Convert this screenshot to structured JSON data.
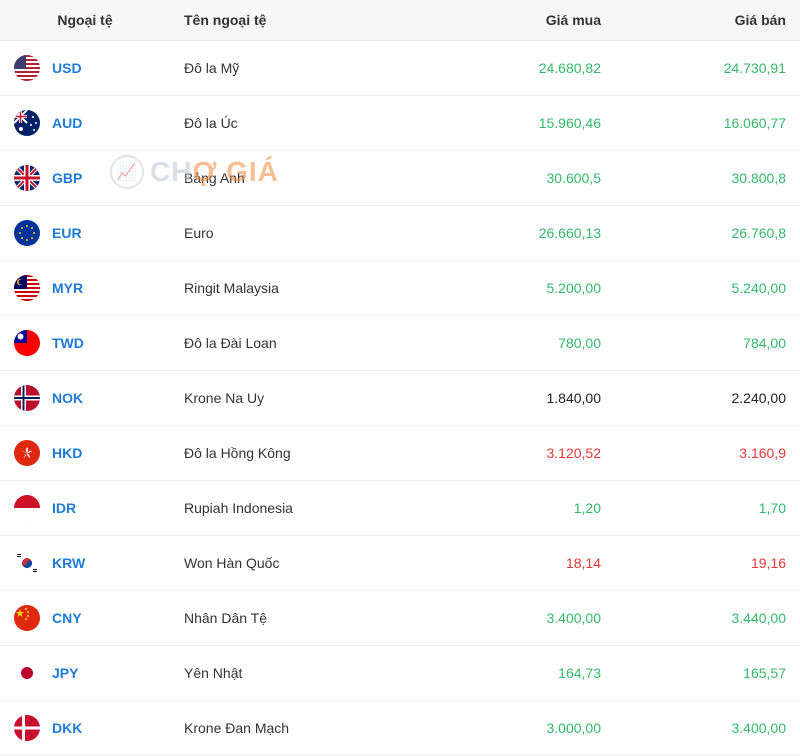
{
  "headers": {
    "code": "Ngoại tệ",
    "name": "Tên ngoại tệ",
    "buy": "Giá mua",
    "sell": "Giá bán"
  },
  "colors": {
    "link": "#1e7bd6",
    "up": "#34b96a",
    "down": "#e43838",
    "neutral": "#222222",
    "header_bg": "#f7f7f7",
    "border": "#eeeeee"
  },
  "watermark": {
    "text1": "CH",
    "text2": "Ợ GIÁ"
  },
  "rows": [
    {
      "code": "USD",
      "name": "Đô la Mỹ",
      "buy": "24.680,82",
      "sell": "24.730,91",
      "trend": "up",
      "flag": "us"
    },
    {
      "code": "AUD",
      "name": "Đô la Úc",
      "buy": "15.960,46",
      "sell": "16.060,77",
      "trend": "up",
      "flag": "au"
    },
    {
      "code": "GBP",
      "name": "Bảng Anh",
      "buy": "30.600,5",
      "sell": "30.800,8",
      "trend": "up",
      "flag": "gb"
    },
    {
      "code": "EUR",
      "name": "Euro",
      "buy": "26.660,13",
      "sell": "26.760,8",
      "trend": "up",
      "flag": "eu"
    },
    {
      "code": "MYR",
      "name": "Ringit Malaysia",
      "buy": "5.200,00",
      "sell": "5.240,00",
      "trend": "up",
      "flag": "my"
    },
    {
      "code": "TWD",
      "name": "Đô la Đài Loan",
      "buy": "780,00",
      "sell": "784,00",
      "trend": "up",
      "flag": "tw"
    },
    {
      "code": "NOK",
      "name": "Krone Na Uy",
      "buy": "1.840,00",
      "sell": "2.240,00",
      "trend": "neutral",
      "flag": "no"
    },
    {
      "code": "HKD",
      "name": "Đô la Hồng Kông",
      "buy": "3.120,52",
      "sell": "3.160,9",
      "trend": "down",
      "flag": "hk"
    },
    {
      "code": "IDR",
      "name": "Rupiah Indonesia",
      "buy": "1,20",
      "sell": "1,70",
      "trend": "up",
      "flag": "id"
    },
    {
      "code": "KRW",
      "name": "Won Hàn Quốc",
      "buy": "18,14",
      "sell": "19,16",
      "trend": "down",
      "flag": "kr"
    },
    {
      "code": "CNY",
      "name": "Nhân Dân Tệ",
      "buy": "3.400,00",
      "sell": "3.440,00",
      "trend": "up",
      "flag": "cn"
    },
    {
      "code": "JPY",
      "name": "Yên Nhật",
      "buy": "164,73",
      "sell": "165,57",
      "trend": "up",
      "flag": "jp"
    },
    {
      "code": "DKK",
      "name": "Krone Đan Mạch",
      "buy": "3.000,00",
      "sell": "3.400,00",
      "trend": "up",
      "flag": "dk"
    }
  ],
  "flags": {
    "us": "<svg viewBox='0 0 26 26'><rect width='26' height='26' fill='#b22234'/><rect y='2' width='26' height='2' fill='#fff'/><rect y='6' width='26' height='2' fill='#fff'/><rect y='10' width='26' height='2' fill='#fff'/><rect y='14' width='26' height='2' fill='#fff'/><rect y='18' width='26' height='2' fill='#fff'/><rect y='22' width='26' height='2' fill='#fff'/><rect width='12' height='14' fill='#3c3b6e'/></svg>",
    "au": "<svg viewBox='0 0 26 26'><rect width='26' height='26' fill='#012169'/><rect width='13' height='13' fill='#012169'/><path d='M0 0L13 13M13 0L0 13' stroke='#fff' stroke-width='2'/><path d='M6.5 0V13M0 6.5H13' stroke='#fff' stroke-width='3'/><path d='M6.5 0V13M0 6.5H13' stroke='#c8102e' stroke-width='1.5'/><circle cx='19' cy='7' r='1' fill='#fff'/><circle cx='17' cy='15' r='1' fill='#fff'/><circle cx='22' cy='13' r='1' fill='#fff'/><circle cx='20' cy='20' r='1' fill='#fff'/><circle cx='7' cy='19' r='2' fill='#fff'/></svg>",
    "gb": "<svg viewBox='0 0 26 26'><rect width='26' height='26' fill='#012169'/><path d='M0 0L26 26M26 0L0 26' stroke='#fff' stroke-width='4'/><path d='M0 0L26 26M26 0L0 26' stroke='#c8102e' stroke-width='2'/><path d='M13 0V26M0 13H26' stroke='#fff' stroke-width='6'/><path d='M13 0V26M0 13H26' stroke='#c8102e' stroke-width='3'/></svg>",
    "eu": "<svg viewBox='0 0 26 26'><rect width='26' height='26' fill='#003399'/><circle cx='13' cy='6' r='1' fill='#ffcc00'/><circle cx='13' cy='20' r='1' fill='#ffcc00'/><circle cx='6' cy='13' r='1' fill='#ffcc00'/><circle cx='20' cy='13' r='1' fill='#ffcc00'/><circle cx='8' cy='8' r='1' fill='#ffcc00'/><circle cx='18' cy='8' r='1' fill='#ffcc00'/><circle cx='8' cy='18' r='1' fill='#ffcc00'/><circle cx='18' cy='18' r='1' fill='#ffcc00'/></svg>",
    "my": "<svg viewBox='0 0 26 26'><rect width='26' height='26' fill='#cc0001'/><rect y='2' width='26' height='2' fill='#fff'/><rect y='6' width='26' height='2' fill='#fff'/><rect y='10' width='26' height='2' fill='#fff'/><rect y='14' width='26' height='2' fill='#fff'/><rect y='18' width='26' height='2' fill='#fff'/><rect y='22' width='26' height='2' fill='#fff'/><rect width='13' height='14' fill='#010066'/><circle cx='6' cy='7' r='3' fill='#ffcc00'/><circle cx='7' cy='7' r='2.5' fill='#010066'/></svg>",
    "tw": "<svg viewBox='0 0 26 26'><rect width='26' height='26' fill='#fe0000'/><rect width='13' height='13' fill='#000095'/><circle cx='6.5' cy='6.5' r='3' fill='#fff'/></svg>",
    "no": "<svg viewBox='0 0 26 26'><rect width='26' height='26' fill='#ba0c2f'/><rect x='7' width='5' height='26' fill='#fff'/><rect y='10.5' width='26' height='5' fill='#fff'/><rect x='8.5' width='2' height='26' fill='#00205b'/><rect y='12' width='26' height='2' fill='#00205b'/></svg>",
    "hk": "<svg viewBox='0 0 26 26'><rect width='26' height='26' fill='#de2910'/><circle cx='13' cy='13' r='6' fill='#de2910'/><path d='M13 7 Q15 10 13 13 Q11 10 13 7' fill='#fff'/><path d='M18 11 Q16 13 13 13 Q16 10 18 11' fill='#fff'/><path d='M16 18 Q13 16 13 13 Q16 15 16 18' fill='#fff'/><path d='M10 18 Q11 14 13 13 Q11 17 10 18' fill='#fff'/><path d='M8 11 Q11 12 13 13 Q9 12 8 11' fill='#fff'/></svg>",
    "id": "<svg viewBox='0 0 26 26'><rect width='26' height='13' fill='#ce1126'/><rect y='13' width='26' height='13' fill='#fff'/></svg>",
    "kr": "<svg viewBox='0 0 26 26'><rect width='26' height='26' fill='#fff'/><circle cx='13' cy='13' r='5' fill='#cd2e3a'/><path d='M8 13 A5 5 0 0 0 18 13' fill='#0047a0'/><circle cx='10.5' cy='13' r='2.5' fill='#cd2e3a'/><circle cx='15.5' cy='13' r='2.5' fill='#0047a0'/><rect x='3' y='4' width='4' height='1' fill='#000'/><rect x='3' y='6' width='4' height='1' fill='#000'/><rect x='19' y='19' width='4' height='1' fill='#000'/><rect x='19' y='21' width='4' height='1' fill='#000'/></svg>",
    "cn": "<svg viewBox='0 0 26 26'><rect width='26' height='26' fill='#de2910'/><polygon points='6,4 7,7 10,7 7.5,9 8.5,12 6,10 3.5,12 4.5,9 2,7 5,7' fill='#ffde00'/><circle cx='12' cy='4' r='1' fill='#ffde00'/><circle cx='14' cy='7' r='1' fill='#ffde00'/><circle cx='14' cy='11' r='1' fill='#ffde00'/><circle cx='12' cy='14' r='1' fill='#ffde00'/></svg>",
    "jp": "<svg viewBox='0 0 26 26'><rect width='26' height='26' fill='#fff'/><circle cx='13' cy='13' r='6' fill='#bc002d'/></svg>",
    "dk": "<svg viewBox='0 0 26 26'><rect width='26' height='26' fill='#c8102e'/><rect x='8' width='3' height='26' fill='#fff'/><rect y='11.5' width='26' height='3' fill='#fff'/></svg>"
  }
}
